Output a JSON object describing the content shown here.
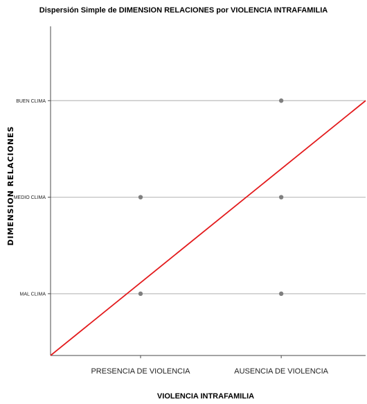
{
  "colors": {
    "point": "#7f7f7f",
    "fit_line": "#e31a1c",
    "grid": "#bdbdbd",
    "axis": "#4a4a4a"
  },
  "chart_data": {
    "type": "scatter",
    "title": "Dispersión Simple de DIMENSION RELACIONES por VIOLENCIA INTRAFAMILIA",
    "xlabel": "VIOLENCIA INTRAFAMILIA",
    "ylabel": "DIMENSION RELACIONES",
    "x_categories": [
      "PRESENCIA DE VIOLENCIA",
      "AUSENCIA DE VIOLENCIA"
    ],
    "y_categories": [
      "MAL CLIMA",
      "MEDIO CLIMA",
      "BUEN CLIMA"
    ],
    "xlim": [
      0.36,
      2.6
    ],
    "ylim": [
      0.36,
      3.77
    ],
    "grid": "horizontal",
    "points": [
      {
        "x": 1,
        "y": 1
      },
      {
        "x": 1,
        "y": 2
      },
      {
        "x": 2,
        "y": 1
      },
      {
        "x": 2,
        "y": 2
      },
      {
        "x": 2,
        "y": 3
      }
    ],
    "fit_line": {
      "from": {
        "x": 0.36,
        "y": 0.36
      },
      "to": {
        "x": 2.6,
        "y": 3.0
      }
    }
  }
}
